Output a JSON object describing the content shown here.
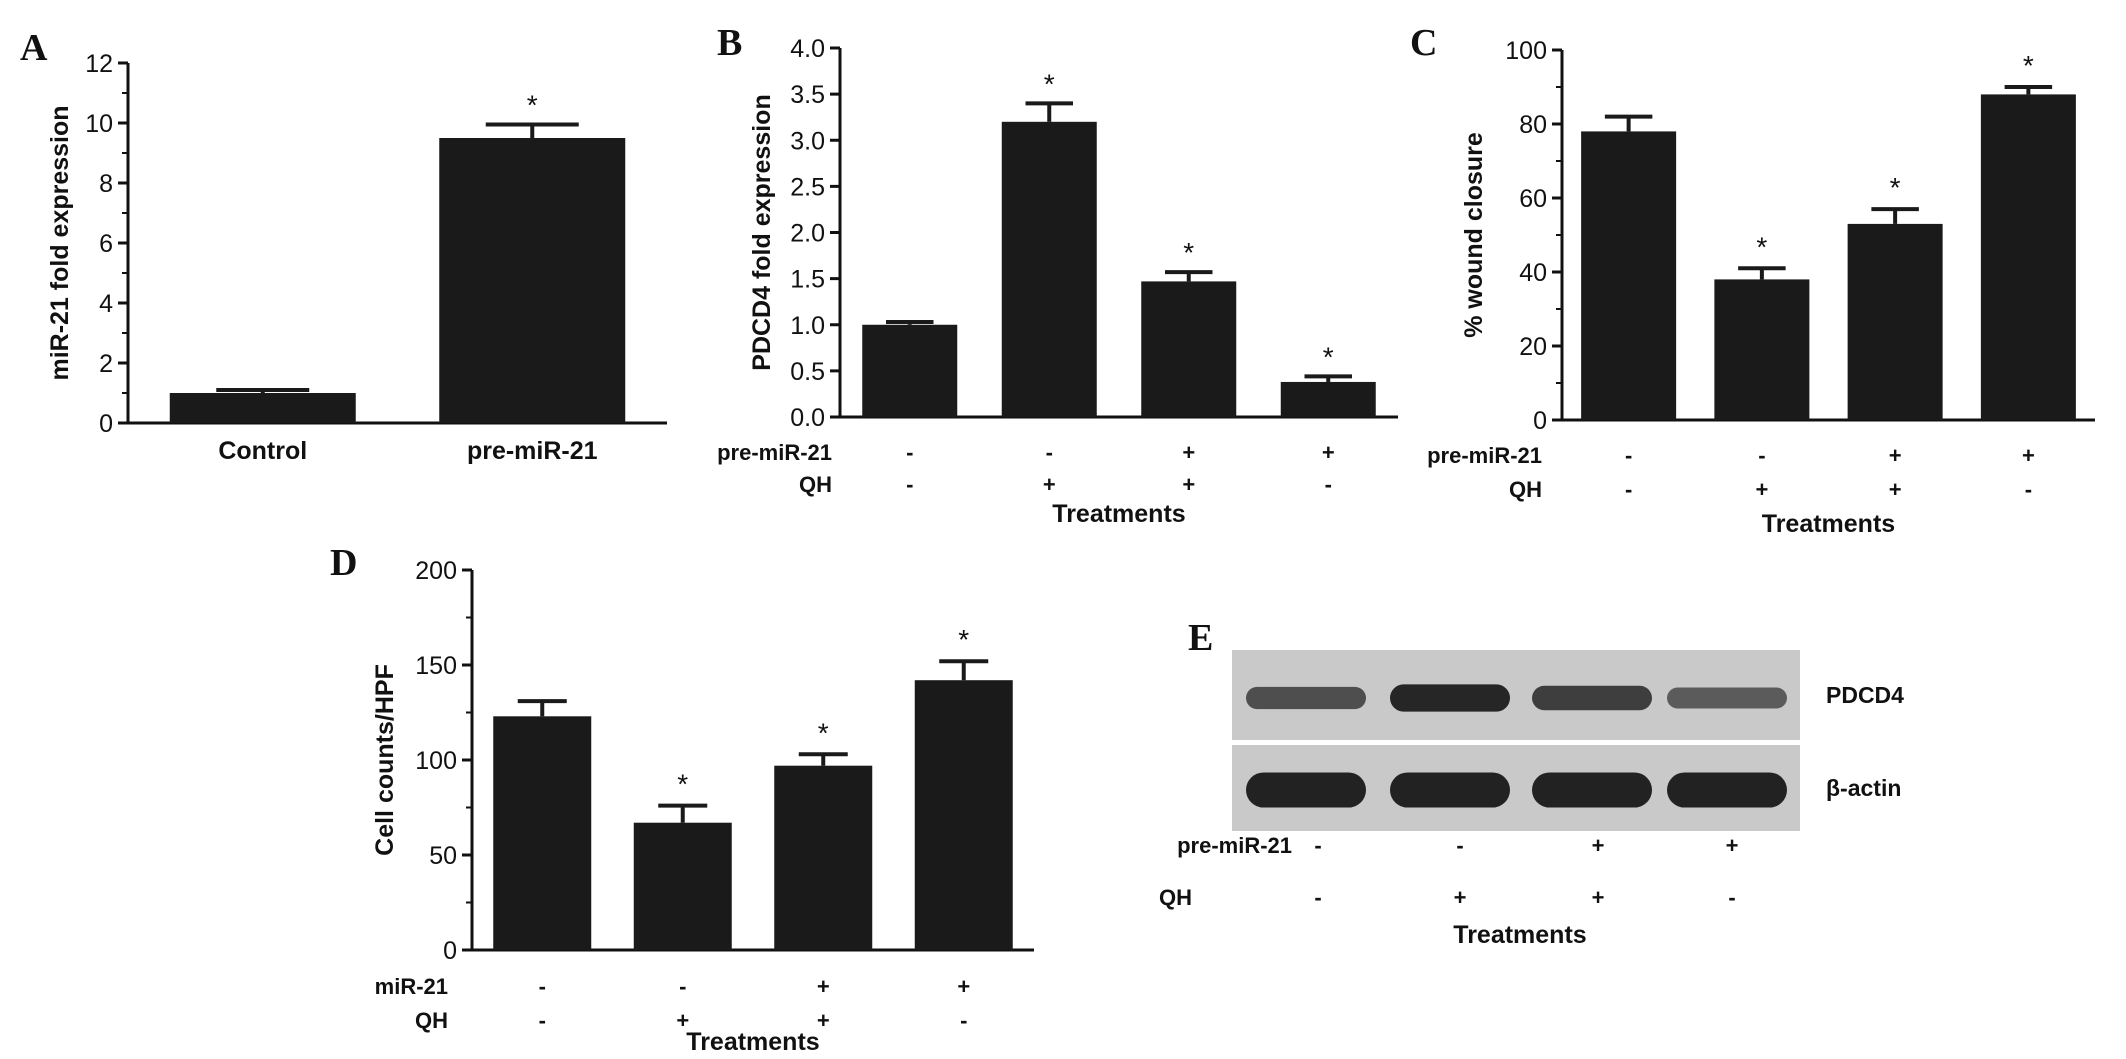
{
  "colors": {
    "bar": "#1a1a1a",
    "axis": "#111111",
    "blot_bg": "#c9c9c9",
    "band": "#1c1c1c"
  },
  "chart_data": [
    {
      "panel": "A",
      "type": "bar",
      "ylabel": "miR-21 fold expression",
      "xlabel": "",
      "ylim": [
        0,
        12
      ],
      "yticks": [
        "0",
        "2",
        "4",
        "6",
        "8",
        "10",
        "12"
      ],
      "categories": [
        "Control",
        "pre-miR-21"
      ],
      "values": [
        1.0,
        9.5
      ],
      "errors": [
        0.1,
        0.45
      ],
      "significance": [
        "",
        "*"
      ]
    },
    {
      "panel": "B",
      "type": "bar",
      "ylabel": "PDCD4 fold expression",
      "xlabel": "Treatments",
      "ylim": [
        0,
        4.0
      ],
      "yticks": [
        "0.0",
        "0.5",
        "1.0",
        "1.5",
        "2.0",
        "2.5",
        "3.0",
        "3.5",
        "4.0"
      ],
      "conditions": [
        {
          "name": "pre-miR-21",
          "values": [
            "-",
            "-",
            "+",
            "+"
          ]
        },
        {
          "name": "QH",
          "values": [
            "-",
            "+",
            "+",
            "-"
          ]
        }
      ],
      "values": [
        1.0,
        3.2,
        1.47,
        0.38
      ],
      "errors": [
        0.03,
        0.2,
        0.1,
        0.06
      ],
      "significance": [
        "",
        "*",
        "*",
        "*"
      ]
    },
    {
      "panel": "C",
      "type": "bar",
      "ylabel": "% wound closure",
      "xlabel": "Treatments",
      "ylim": [
        0,
        100
      ],
      "yticks": [
        "0",
        "20",
        "40",
        "60",
        "80",
        "100"
      ],
      "conditions": [
        {
          "name": "pre-miR-21",
          "values": [
            "-",
            "-",
            "+",
            "+"
          ]
        },
        {
          "name": "QH",
          "values": [
            "-",
            "+",
            "+",
            "-"
          ]
        }
      ],
      "values": [
        78,
        38,
        53,
        88
      ],
      "errors": [
        4,
        3,
        4,
        2
      ],
      "significance": [
        "",
        "*",
        "*",
        "*"
      ]
    },
    {
      "panel": "D",
      "type": "bar",
      "ylabel": "Cell counts/HPF",
      "xlabel": "Treatments",
      "ylim": [
        0,
        200
      ],
      "yticks": [
        "0",
        "50",
        "100",
        "150",
        "200"
      ],
      "conditions": [
        {
          "name": "miR-21",
          "values": [
            "-",
            "-",
            "+",
            "+"
          ]
        },
        {
          "name": "QH",
          "values": [
            "-",
            "+",
            "+",
            "-"
          ]
        }
      ],
      "values": [
        123,
        67,
        97,
        142
      ],
      "errors": [
        8,
        9,
        6,
        10
      ],
      "significance": [
        "",
        "*",
        "*",
        "*"
      ]
    }
  ],
  "blot": {
    "panel": "E",
    "bands": [
      "PDCD4",
      "β-actin"
    ],
    "pdcd4_intensity": [
      0.55,
      0.9,
      0.7,
      0.45
    ],
    "actin_intensity": [
      0.95,
      0.95,
      0.95,
      0.95
    ],
    "conditions": [
      {
        "name": "pre-miR-21",
        "values": [
          "-",
          "-",
          "+",
          "+"
        ]
      },
      {
        "name": "QH",
        "values": [
          "-",
          "+",
          "+",
          "-"
        ]
      }
    ],
    "xlabel": "Treatments"
  }
}
